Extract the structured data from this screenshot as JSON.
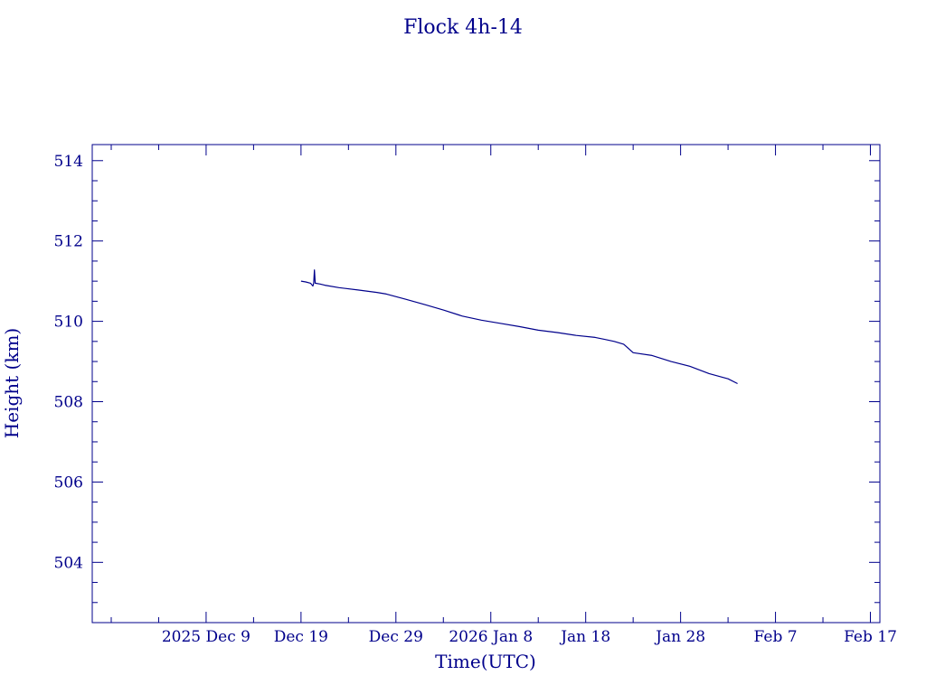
{
  "chart_data": {
    "type": "line",
    "title": "Flock 4h-14",
    "xlabel": "Time(UTC)",
    "ylabel": "Height (km)",
    "x_axis_type": "date",
    "xlim": [
      "2025-11-27",
      "2026-02-18"
    ],
    "ylim": [
      502.5,
      514.4
    ],
    "x_ticks": [
      {
        "date": "2025-12-09",
        "label": "2025 Dec  9"
      },
      {
        "date": "2025-12-19",
        "label": "Dec 19"
      },
      {
        "date": "2025-12-29",
        "label": "Dec 29"
      },
      {
        "date": "2026-01-08",
        "label": "2026 Jan  8"
      },
      {
        "date": "2026-01-18",
        "label": "Jan 18"
      },
      {
        "date": "2026-01-28",
        "label": "Jan 28"
      },
      {
        "date": "2026-02-07",
        "label": "Feb  7"
      },
      {
        "date": "2026-02-17",
        "label": "Feb 17"
      }
    ],
    "y_ticks": [
      504,
      506,
      508,
      510,
      512,
      514
    ],
    "grid": false,
    "legend": "none",
    "colors": {
      "axis": "#00008b",
      "series": "#00008b",
      "background": "#ffffff"
    },
    "series": [
      {
        "x": [
          "2025-12-19T00:00",
          "2025-12-19T12:00",
          "2025-12-20T00:00",
          "2025-12-20T06:00",
          "2025-12-20T08:00",
          "2025-12-20T10:00",
          "2025-12-20T12:00",
          "2025-12-21T00:00",
          "2025-12-21T12:00",
          "2025-12-23T00:00",
          "2025-12-25T00:00",
          "2025-12-27T00:00",
          "2025-12-28T00:00",
          "2025-12-30T00:00",
          "2026-01-01T00:00",
          "2026-01-03T00:00",
          "2026-01-05T00:00",
          "2026-01-07T00:00",
          "2026-01-09T00:00",
          "2026-01-11T00:00",
          "2026-01-13T00:00",
          "2026-01-15T00:00",
          "2026-01-17T00:00",
          "2026-01-19T00:00",
          "2026-01-20T00:00",
          "2026-01-21T00:00",
          "2026-01-22T00:00",
          "2026-01-23T00:00",
          "2026-01-25T00:00",
          "2026-01-27T00:00",
          "2026-01-29T00:00",
          "2026-01-31T00:00",
          "2026-02-02T00:00",
          "2026-02-03T00:00"
        ],
        "y": [
          511.0,
          510.98,
          510.95,
          510.88,
          510.95,
          511.28,
          510.95,
          510.93,
          510.9,
          510.84,
          510.78,
          510.72,
          510.68,
          510.55,
          510.42,
          510.28,
          510.13,
          510.03,
          509.95,
          509.87,
          509.78,
          509.72,
          509.65,
          509.6,
          509.55,
          509.5,
          509.43,
          509.22,
          509.15,
          509.0,
          508.88,
          508.7,
          508.57,
          508.45
        ]
      }
    ]
  }
}
